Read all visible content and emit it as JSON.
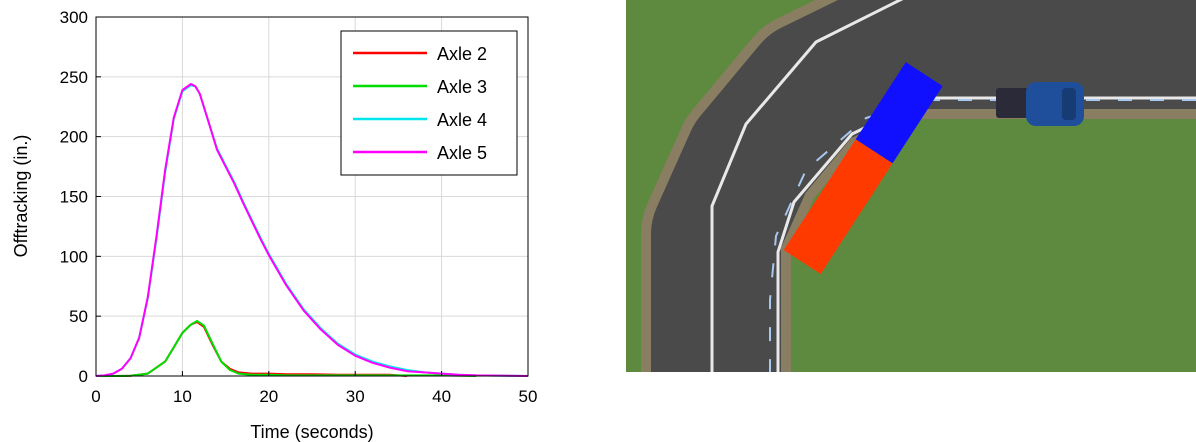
{
  "chart_data": {
    "type": "line",
    "xlabel": "Time (seconds)",
    "ylabel": "Offtracking (in.)",
    "xlim": [
      0,
      50
    ],
    "ylim": [
      0,
      300
    ],
    "xticks": [
      0,
      10,
      20,
      30,
      40,
      50
    ],
    "yticks": [
      0,
      50,
      100,
      150,
      200,
      250,
      300
    ],
    "grid": true,
    "legend_position": "top-right",
    "series": [
      {
        "name": "Axle 2",
        "color": "#ff0000",
        "x": [
          0,
          2,
          4,
          6,
          8,
          9,
          10,
          11,
          11.7,
          12.5,
          13.5,
          14.5,
          15.5,
          16.5,
          18,
          20,
          22,
          25,
          28,
          31,
          34,
          36
        ],
        "y": [
          0,
          0,
          0.2,
          2,
          12,
          24,
          36,
          43,
          45,
          41,
          26,
          12,
          6,
          3,
          2,
          2,
          1.5,
          1.5,
          1,
          1,
          1,
          0
        ]
      },
      {
        "name": "Axle 3",
        "color": "#00dd00",
        "x": [
          0,
          2,
          4,
          6,
          8,
          9,
          10,
          11,
          11.7,
          12.5,
          13.5,
          14.5,
          15.5,
          16.5,
          18,
          20,
          22,
          25,
          30,
          35,
          40,
          44
        ],
        "y": [
          0,
          0,
          0.2,
          2,
          12,
          24,
          36,
          43,
          46,
          42,
          27,
          12,
          5,
          2,
          1,
          1,
          0.5,
          0.5,
          0.5,
          0.5,
          0.5,
          0
        ]
      },
      {
        "name": "Axle 4",
        "color": "#00e5ee",
        "x": [
          0,
          1,
          2,
          3,
          4,
          5,
          6,
          7,
          8,
          9,
          10,
          11,
          11.5,
          12,
          13,
          14,
          15,
          16,
          17,
          18,
          19,
          20,
          22,
          24,
          26,
          28,
          30,
          32,
          34,
          36,
          38,
          40,
          42,
          44,
          50
        ],
        "y": [
          0,
          0.5,
          2,
          6,
          15,
          32,
          65,
          115,
          170,
          215,
          238,
          243,
          242,
          236,
          213,
          190,
          176,
          162,
          146,
          131,
          116,
          102,
          77,
          56,
          40,
          27,
          18,
          12,
          8,
          5,
          3,
          2,
          1,
          0.5,
          0
        ]
      },
      {
        "name": "Axle 5",
        "color": "#ff00ff",
        "x": [
          0,
          1,
          2,
          3,
          4,
          5,
          6,
          7,
          8,
          9,
          10,
          11,
          11.5,
          12,
          13,
          14,
          15,
          16,
          17,
          18,
          19,
          20,
          22,
          24,
          26,
          28,
          30,
          32,
          34,
          36,
          38,
          40,
          42,
          44,
          50
        ],
        "y": [
          0,
          0.5,
          2,
          6,
          15,
          32,
          66,
          117,
          172,
          216,
          239,
          244,
          242,
          236,
          213,
          189,
          175,
          161,
          145,
          130,
          115,
          101,
          76,
          55,
          39,
          26,
          17,
          11,
          7,
          4,
          3,
          2,
          1,
          0.5,
          0
        ]
      }
    ]
  },
  "scene": {
    "grass_color": "#5d8a3e",
    "road_color": "#4a4a4a",
    "trailer_front_color": "#1010ff",
    "trailer_rear_color": "#ff3a00",
    "cab_color": "#1f4f9a"
  }
}
